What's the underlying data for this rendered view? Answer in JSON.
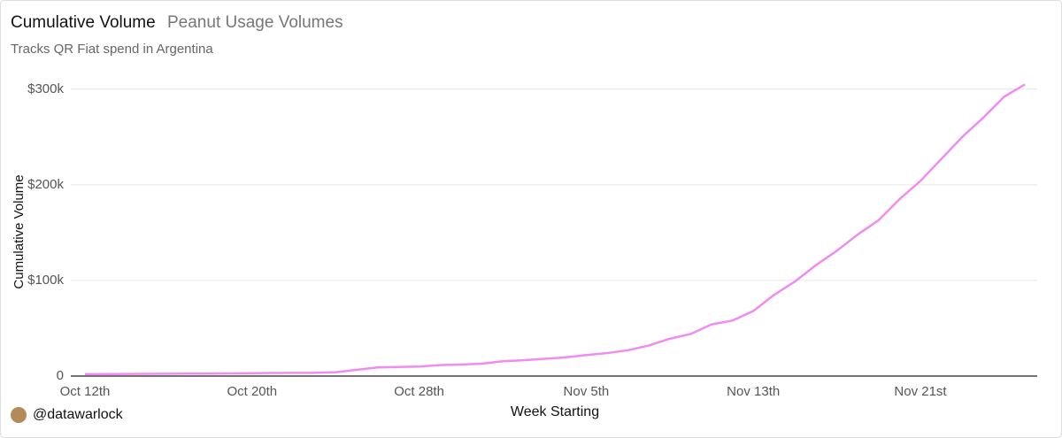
{
  "chart_data": {
    "type": "line",
    "title": "Cumulative Volume",
    "subtitle": "Peanut Usage Volumes",
    "description": "Tracks QR Fiat spend in Argentina",
    "y_label": "Cumulative Volume",
    "x_label": "Week Starting",
    "credit": "@datawarlock",
    "categories": [
      "Oct 12th",
      null,
      null,
      null,
      null,
      null,
      null,
      null,
      "Oct 20th",
      null,
      null,
      null,
      null,
      null,
      null,
      null,
      "Oct 28th",
      null,
      null,
      null,
      null,
      null,
      null,
      null,
      "Nov 5th",
      null,
      null,
      null,
      null,
      null,
      null,
      null,
      "Nov 13th",
      null,
      null,
      null,
      null,
      null,
      null,
      null,
      "Nov 21st",
      null,
      null,
      null,
      null,
      null
    ],
    "series": [
      {
        "name": "Cumulative Volume",
        "color": "#f08cf0",
        "values": [
          2000,
          2100,
          2200,
          2300,
          2400,
          2500,
          2600,
          2800,
          3000,
          3200,
          3300,
          3400,
          4000,
          6500,
          9000,
          9500,
          10000,
          11500,
          12000,
          13000,
          15500,
          16500,
          18000,
          19500,
          22000,
          24000,
          27000,
          32000,
          39000,
          44000,
          54000,
          58000,
          68000,
          85000,
          99000,
          116000,
          131000,
          148000,
          163000,
          185000,
          204000,
          227000,
          250000,
          270000,
          292000,
          305000
        ]
      }
    ],
    "ylim": [
      0,
      310000
    ],
    "yticks": [
      0,
      {
        "value": 100000,
        "label": "$100k"
      },
      {
        "value": 200000,
        "label": "$200k"
      },
      {
        "value": 300000,
        "label": "$300k"
      }
    ],
    "grid": true
  }
}
